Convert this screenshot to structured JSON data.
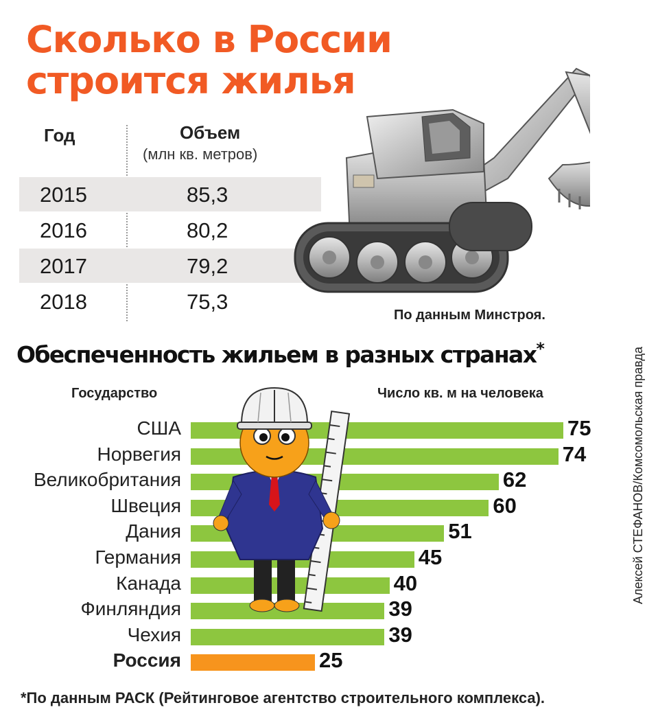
{
  "title_line1": "Сколько в России",
  "title_line2": "строится жилья",
  "table": {
    "col_year": "Год",
    "col_volume": "Объем",
    "col_volume_unit": "(млн кв. метров)",
    "rows": [
      {
        "year": "2015",
        "value": "85,3"
      },
      {
        "year": "2016",
        "value": "80,2"
      },
      {
        "year": "2017",
        "value": "79,2"
      },
      {
        "year": "2018",
        "value": "75,3"
      }
    ],
    "source": "По данным Минстроя."
  },
  "chart_title": "Обеспеченность жильем в разных странах",
  "chart_title_mark": "*",
  "label_country": "Государство",
  "label_value": "Число кв. м на человека",
  "credit": "Алексей СТЕФАНОВ/Комсомольская правда",
  "footnote": "*По данным РАСК (Рейтинговое агентство строительного комплекса).",
  "colors": {
    "title": "#f15a24",
    "bar": "#8dc63f",
    "highlight": "#f7941d"
  },
  "icons": [
    "excavator-illustration",
    "construction-worker-illustration"
  ],
  "chart_data": {
    "type": "bar",
    "orientation": "horizontal",
    "categories": [
      "США",
      "Норвегия",
      "Великобритания",
      "Швеция",
      "Дания",
      "Германия",
      "Канада",
      "Финляндия",
      "Чехия",
      "Россия"
    ],
    "values": [
      75,
      74,
      62,
      60,
      51,
      45,
      40,
      39,
      39,
      25
    ],
    "highlight": "Россия",
    "xlabel": "Число кв. м на человека",
    "ylabel": "Государство",
    "grid": false
  }
}
